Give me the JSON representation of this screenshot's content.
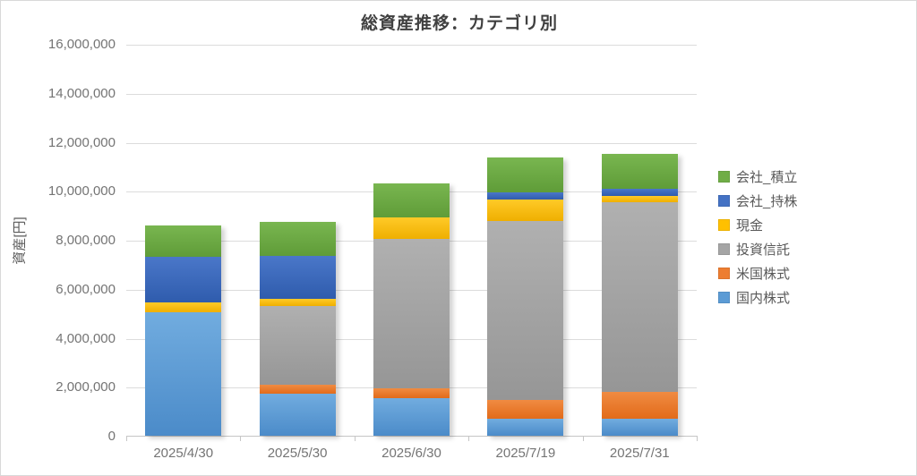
{
  "title": "総資産推移：カテゴリ別",
  "y_axis_title": "資産[円]",
  "chart_data": {
    "type": "bar",
    "stacked": true,
    "title": "総資産推移：カテゴリ別",
    "ylabel": "資産[円]",
    "xlabel": "",
    "ylim": [
      0,
      16000000
    ],
    "ytick_step": 2000000,
    "grid": true,
    "legend_position": "right",
    "legend_order": "reverse-of-stack",
    "categories": [
      "2025/4/30",
      "2025/5/30",
      "2025/6/30",
      "2025/7/19",
      "2025/7/31"
    ],
    "series": [
      {
        "name": "国内株式",
        "color": "#5B9BD5",
        "color_light": "#71ACDF",
        "color_dark": "#4B8BC9",
        "values": [
          5050000,
          1700000,
          1550000,
          700000,
          700000
        ]
      },
      {
        "name": "米国株式",
        "color": "#ED7D31",
        "color_light": "#F08B42",
        "color_dark": "#E26B1A",
        "values": [
          0,
          400000,
          400000,
          750000,
          1100000
        ]
      },
      {
        "name": "投資信託",
        "color": "#A5A5A5",
        "color_light": "#B0B0B0",
        "color_dark": "#969696",
        "values": [
          0,
          3200000,
          6100000,
          7300000,
          7750000
        ]
      },
      {
        "name": "現金",
        "color": "#FFC000",
        "color_light": "#FFCA28",
        "color_dark": "#EFAF00",
        "values": [
          400000,
          300000,
          850000,
          900000,
          250000
        ]
      },
      {
        "name": "会社_持株",
        "color": "#4472C4",
        "color_light": "#4A77C9",
        "color_dark": "#2F5CAD",
        "values": [
          1850000,
          1750000,
          0,
          300000,
          300000
        ]
      },
      {
        "name": "会社_積立",
        "color": "#70AD47",
        "color_light": "#79B650",
        "color_dark": "#5F9C38",
        "values": [
          1300000,
          1400000,
          1400000,
          1400000,
          1400000
        ]
      }
    ],
    "totals": [
      8600000,
      8750000,
      10300000,
      11350000,
      11500000
    ]
  }
}
